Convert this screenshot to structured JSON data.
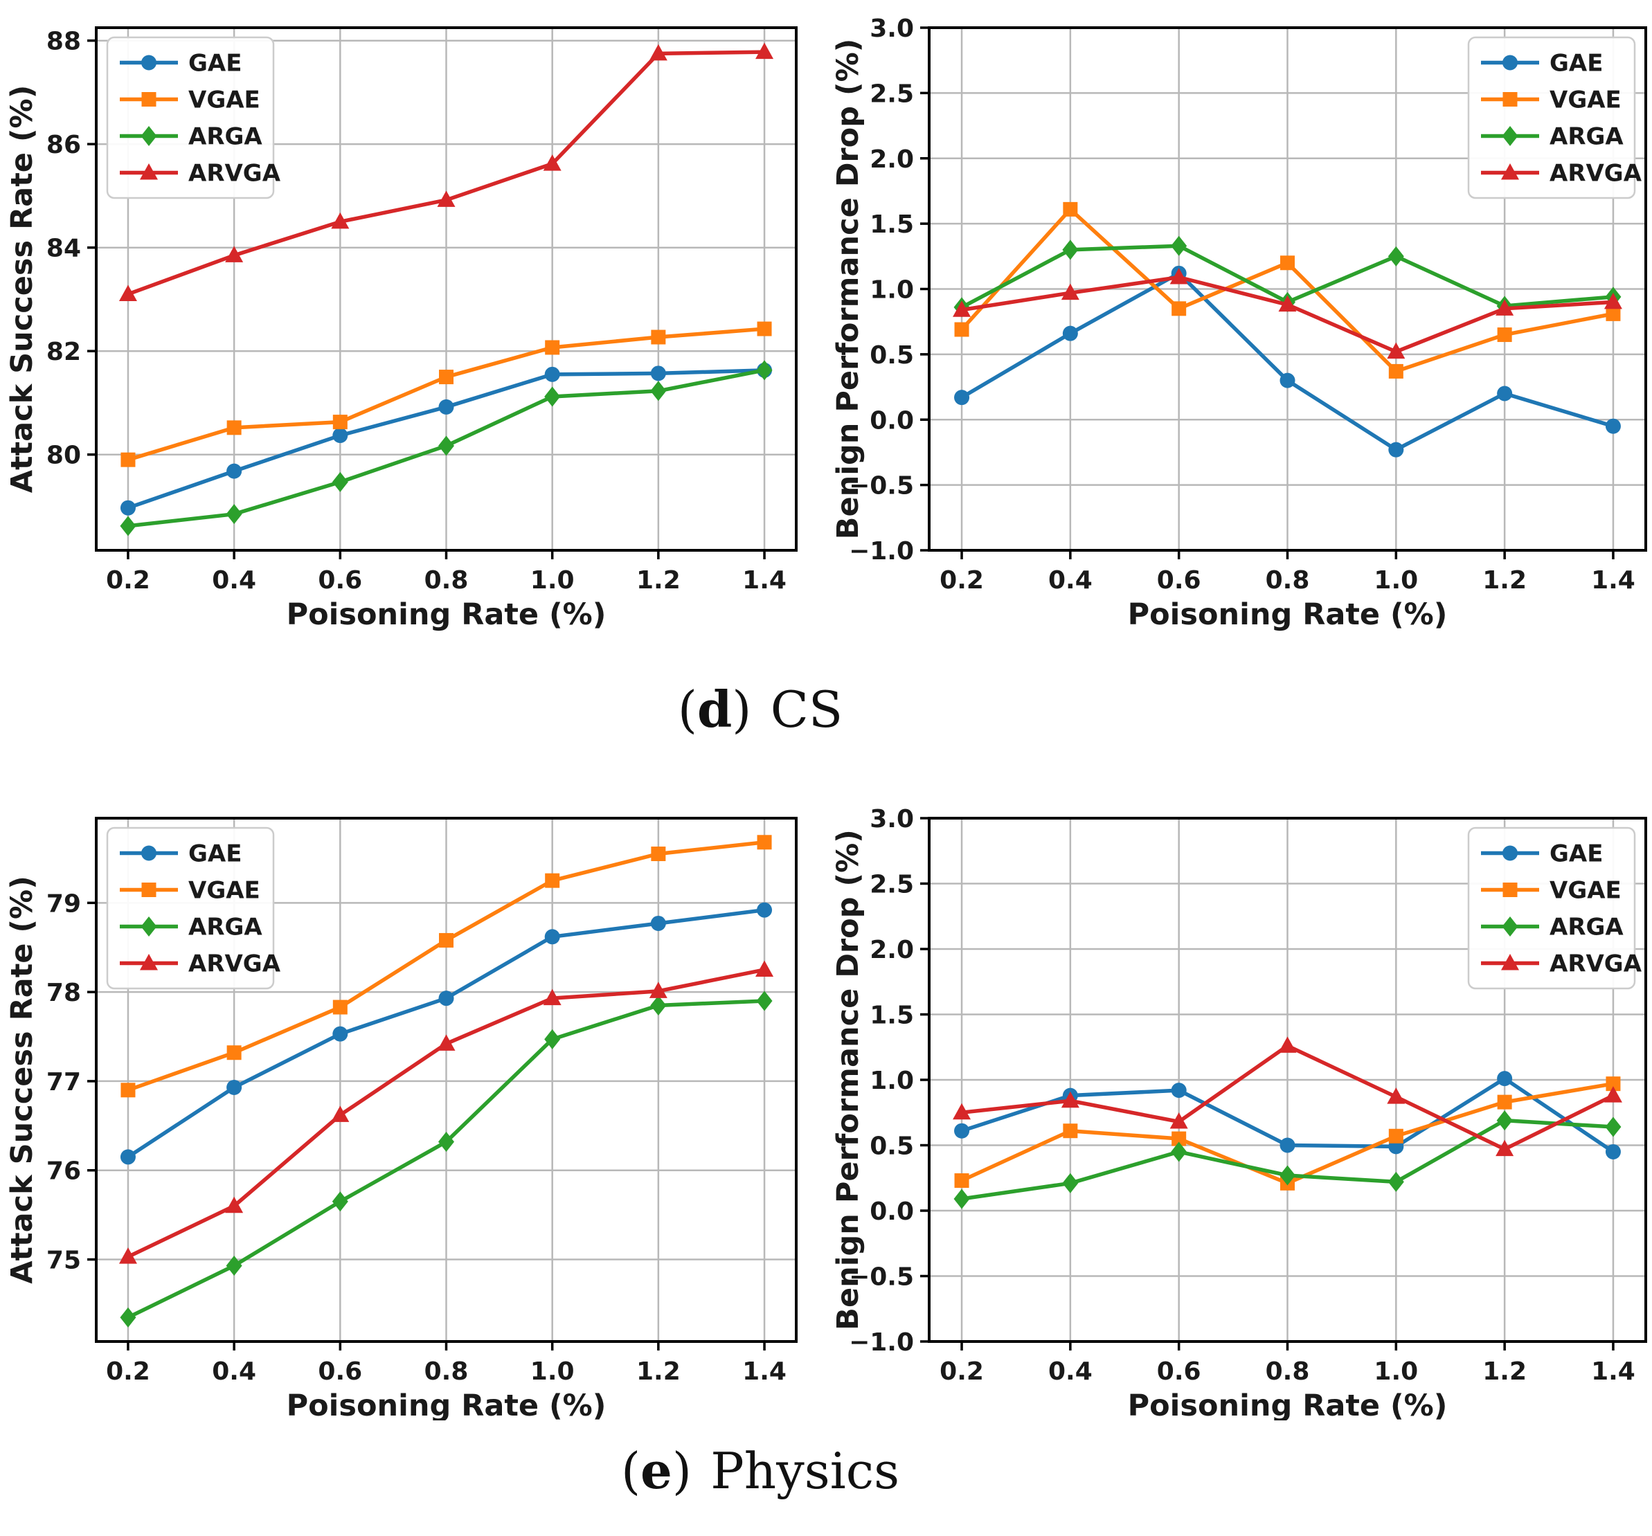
{
  "style": {
    "background": "#ffffff",
    "grid_color": "#b8b8b8",
    "spine_color": "#000000",
    "text_color": "#1a1a1a",
    "legend_border_color": "#cccccc",
    "series_colors": {
      "GAE": "#1f77b4",
      "VGAE": "#ff7f0e",
      "ARGA": "#2ca02c",
      "ARVGA": "#d62728"
    }
  },
  "captions": [
    {
      "open": "(",
      "letter": "d",
      "close": ")",
      "name": "CS"
    },
    {
      "open": "(",
      "letter": "e",
      "close": ")",
      "name": "Physics"
    }
  ],
  "chart_data": [
    {
      "panel": "cs-attack-success-rate",
      "type": "line",
      "xlabel": "Poisoning Rate (%)",
      "ylabel": "Attack Success Rate (%)",
      "x": [
        0.2,
        0.4,
        0.6,
        0.8,
        1.0,
        1.2,
        1.4
      ],
      "xticks": [
        0.2,
        0.4,
        0.6,
        0.8,
        1.0,
        1.2,
        1.4
      ],
      "xtick_decimals": 1,
      "xlim": [
        0.14,
        1.46
      ],
      "ylim": [
        78.15,
        88.25
      ],
      "yticks": [
        80,
        82,
        84,
        86,
        88
      ],
      "ytick_decimals": 0,
      "grid": true,
      "legend_position": "upper-left",
      "series": [
        {
          "name": "GAE",
          "color": "#1f77b4",
          "marker": "circle",
          "values": [
            78.97,
            79.68,
            80.37,
            80.92,
            81.55,
            81.57,
            81.63
          ]
        },
        {
          "name": "VGAE",
          "color": "#ff7f0e",
          "marker": "square",
          "values": [
            79.9,
            80.52,
            80.63,
            81.5,
            82.07,
            82.27,
            82.43
          ]
        },
        {
          "name": "ARGA",
          "color": "#2ca02c",
          "marker": "diamond",
          "values": [
            78.62,
            78.85,
            79.47,
            80.17,
            81.12,
            81.23,
            81.63
          ]
        },
        {
          "name": "ARVGA",
          "color": "#d62728",
          "marker": "triangle",
          "values": [
            83.1,
            83.85,
            84.5,
            84.92,
            85.62,
            87.75,
            87.78
          ]
        }
      ]
    },
    {
      "panel": "cs-benign-performance-drop",
      "type": "line",
      "xlabel": "Poisoning Rate (%)",
      "ylabel": "Benign Performance Drop (%)",
      "x": [
        0.2,
        0.4,
        0.6,
        0.8,
        1.0,
        1.2,
        1.4
      ],
      "xticks": [
        0.2,
        0.4,
        0.6,
        0.8,
        1.0,
        1.2,
        1.4
      ],
      "xtick_decimals": 1,
      "xlim": [
        0.14,
        1.46
      ],
      "ylim": [
        -1.0,
        3.0
      ],
      "yticks": [
        3.0,
        2.5,
        2.0,
        1.5,
        1.0,
        0.5,
        0.0,
        -0.5,
        -1.0
      ],
      "ytick_decimals": 1,
      "grid": true,
      "legend_position": "upper-right",
      "series": [
        {
          "name": "GAE",
          "color": "#1f77b4",
          "marker": "circle",
          "values": [
            0.17,
            0.66,
            1.12,
            0.3,
            -0.23,
            0.2,
            -0.05
          ]
        },
        {
          "name": "VGAE",
          "color": "#ff7f0e",
          "marker": "square",
          "values": [
            0.69,
            1.61,
            0.85,
            1.2,
            0.37,
            0.65,
            0.81
          ]
        },
        {
          "name": "ARGA",
          "color": "#2ca02c",
          "marker": "diamond",
          "values": [
            0.86,
            1.3,
            1.33,
            0.9,
            1.25,
            0.87,
            0.94
          ]
        },
        {
          "name": "ARVGA",
          "color": "#d62728",
          "marker": "triangle",
          "values": [
            0.84,
            0.97,
            1.09,
            0.88,
            0.52,
            0.85,
            0.9
          ]
        }
      ]
    },
    {
      "panel": "physics-attack-success-rate",
      "type": "line",
      "xlabel": "Poisoning Rate (%)",
      "ylabel": "Attack Success Rate (%)",
      "x": [
        0.2,
        0.4,
        0.6,
        0.8,
        1.0,
        1.2,
        1.4
      ],
      "xticks": [
        0.2,
        0.4,
        0.6,
        0.8,
        1.0,
        1.2,
        1.4
      ],
      "xtick_decimals": 1,
      "xlim": [
        0.14,
        1.46
      ],
      "ylim": [
        74.08,
        79.95
      ],
      "yticks": [
        75,
        76,
        77,
        78,
        79
      ],
      "ytick_decimals": 0,
      "grid": true,
      "legend_position": "upper-left",
      "series": [
        {
          "name": "GAE",
          "color": "#1f77b4",
          "marker": "circle",
          "values": [
            76.15,
            76.93,
            77.53,
            77.93,
            78.62,
            78.77,
            78.92
          ]
        },
        {
          "name": "VGAE",
          "color": "#ff7f0e",
          "marker": "square",
          "values": [
            76.9,
            77.32,
            77.83,
            78.58,
            79.25,
            79.55,
            79.68
          ]
        },
        {
          "name": "ARGA",
          "color": "#2ca02c",
          "marker": "diamond",
          "values": [
            74.35,
            74.93,
            75.65,
            76.32,
            77.47,
            77.85,
            77.9
          ]
        },
        {
          "name": "ARVGA",
          "color": "#d62728",
          "marker": "triangle",
          "values": [
            75.03,
            75.6,
            76.62,
            77.42,
            77.93,
            78.01,
            78.25
          ]
        }
      ]
    },
    {
      "panel": "physics-benign-performance-drop",
      "type": "line",
      "xlabel": "Poisoning Rate (%)",
      "ylabel": "Benign Performance Drop (%)",
      "x": [
        0.2,
        0.4,
        0.6,
        0.8,
        1.0,
        1.2,
        1.4
      ],
      "xticks": [
        0.2,
        0.4,
        0.6,
        0.8,
        1.0,
        1.2,
        1.4
      ],
      "xtick_decimals": 1,
      "xlim": [
        0.14,
        1.46
      ],
      "ylim": [
        -1.0,
        3.0
      ],
      "yticks": [
        3.0,
        2.5,
        2.0,
        1.5,
        1.0,
        0.5,
        0.0,
        -0.5,
        -1.0
      ],
      "ytick_decimals": 1,
      "grid": true,
      "legend_position": "upper-right",
      "series": [
        {
          "name": "GAE",
          "color": "#1f77b4",
          "marker": "circle",
          "values": [
            0.61,
            0.88,
            0.92,
            0.5,
            0.49,
            1.01,
            0.45
          ]
        },
        {
          "name": "VGAE",
          "color": "#ff7f0e",
          "marker": "square",
          "values": [
            0.23,
            0.61,
            0.55,
            0.21,
            0.57,
            0.83,
            0.97
          ]
        },
        {
          "name": "ARGA",
          "color": "#2ca02c",
          "marker": "diamond",
          "values": [
            0.09,
            0.21,
            0.45,
            0.27,
            0.22,
            0.69,
            0.64
          ]
        },
        {
          "name": "ARVGA",
          "color": "#d62728",
          "marker": "triangle",
          "values": [
            0.75,
            0.84,
            0.68,
            1.26,
            0.87,
            0.47,
            0.88
          ]
        }
      ]
    }
  ]
}
